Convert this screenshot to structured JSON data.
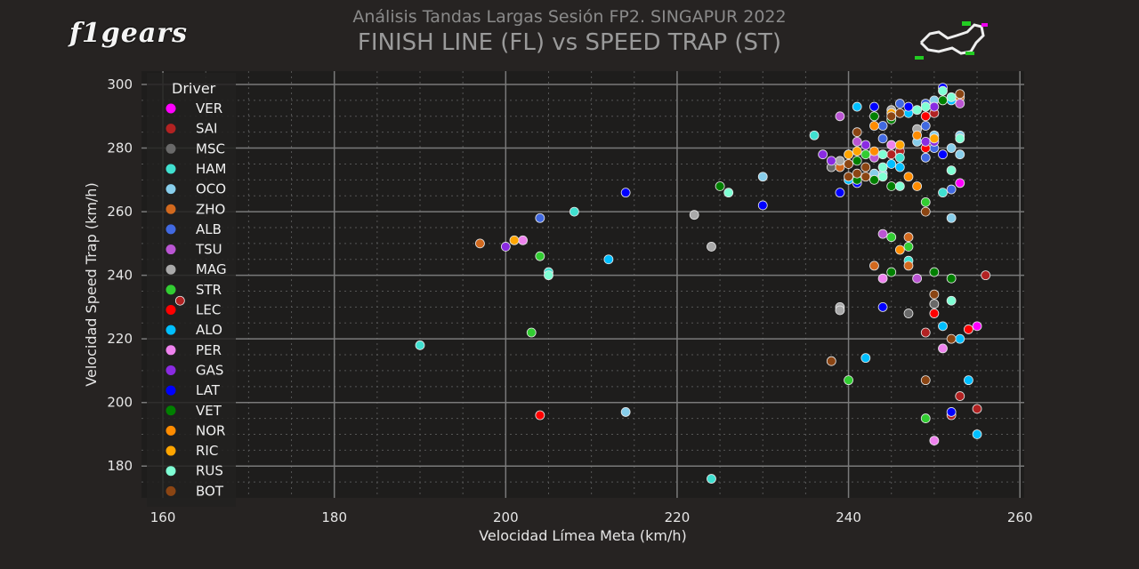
{
  "logo": {
    "text": "f1gears"
  },
  "header": {
    "subtitle": "Análisis Tandas Largas Sesión FP2. SINGAPUR 2022",
    "title": "FINISH LINE (FL) vs SPEED TRAP (ST)"
  },
  "chart_data": {
    "type": "scatter",
    "title": "FINISH LINE (FL) vs SPEED TRAP (ST)",
    "xlabel": "Velocidad Límea Meta (km/h)",
    "ylabel": "Velocidad Speed Trap (km/h)",
    "xlim": [
      157.5,
      260.5
    ],
    "ylim": [
      170,
      304.2
    ],
    "xticks": [
      160,
      180,
      200,
      220,
      240,
      260
    ],
    "yticks": [
      180,
      200,
      220,
      240,
      260,
      280,
      300
    ],
    "grid": true,
    "legend_title": "Driver",
    "legend_position": "left",
    "series": [
      {
        "name": "VER",
        "color": "#ff00ff",
        "points": [
          [
            255,
            224
          ],
          [
            253,
            269
          ]
        ]
      },
      {
        "name": "SAI",
        "color": "#b22222",
        "points": [
          [
            162,
            232
          ],
          [
            256,
            240
          ],
          [
            249,
            222
          ],
          [
            253,
            202
          ],
          [
            255,
            198
          ],
          [
            252,
            196
          ],
          [
            250,
            291
          ],
          [
            245,
            278
          ],
          [
            246,
            279
          ]
        ]
      },
      {
        "name": "MSC",
        "color": "#696969",
        "points": [
          [
            238,
            274
          ],
          [
            250,
            231
          ],
          [
            247,
            228
          ]
        ]
      },
      {
        "name": "HAM",
        "color": "#40e0d0",
        "points": [
          [
            190,
            218
          ],
          [
            205,
            241
          ],
          [
            208,
            260
          ],
          [
            224,
            176
          ],
          [
            236,
            284
          ],
          [
            247,
            244.6
          ],
          [
            246,
            277
          ],
          [
            251,
            266
          ]
        ]
      },
      {
        "name": "OCO",
        "color": "#87ceeb",
        "points": [
          [
            214,
            197
          ],
          [
            230,
            271
          ],
          [
            252,
            258
          ],
          [
            250,
            295
          ],
          [
            248,
            282
          ],
          [
            250,
            284
          ],
          [
            253,
            284
          ],
          [
            244,
            272
          ],
          [
            243,
            272
          ],
          [
            252,
            280
          ],
          [
            253,
            278
          ]
        ]
      },
      {
        "name": "ZHO",
        "color": "#d2691e",
        "points": [
          [
            197,
            250
          ],
          [
            247,
            252
          ],
          [
            247,
            243
          ],
          [
            243,
            243
          ],
          [
            253,
            296
          ],
          [
            239,
            274
          ]
        ]
      },
      {
        "name": "ALB",
        "color": "#4169e1",
        "points": [
          [
            204,
            258
          ],
          [
            246,
            294
          ],
          [
            249,
            294
          ],
          [
            244,
            287
          ],
          [
            249,
            287
          ],
          [
            250,
            280
          ],
          [
            249,
            277
          ],
          [
            244,
            283
          ],
          [
            252,
            267
          ]
        ]
      },
      {
        "name": "TSU",
        "color": "#ba55d3",
        "points": [
          [
            244,
            253
          ],
          [
            248,
            239
          ],
          [
            239,
            290
          ],
          [
            253,
            294
          ],
          [
            241,
            282
          ],
          [
            243,
            277
          ]
        ]
      },
      {
        "name": "MAG",
        "color": "#a9a9a9",
        "points": [
          [
            222,
            259
          ],
          [
            224,
            249
          ],
          [
            239,
            230
          ],
          [
            239,
            229
          ],
          [
            245,
            292
          ],
          [
            248,
            286
          ],
          [
            239,
            276
          ]
        ]
      },
      {
        "name": "STR",
        "color": "#32cd32",
        "points": [
          [
            204,
            246
          ],
          [
            203,
            222
          ],
          [
            247,
            249
          ],
          [
            245,
            252
          ],
          [
            240,
            207
          ],
          [
            249,
            195
          ],
          [
            242,
            278
          ],
          [
            249,
            263
          ]
        ]
      },
      {
        "name": "LEC",
        "color": "#ff0000",
        "points": [
          [
            204,
            196
          ],
          [
            250,
            228
          ],
          [
            254,
            223
          ],
          [
            249,
            290
          ],
          [
            249,
            280
          ]
        ]
      },
      {
        "name": "ALO",
        "color": "#00bfff",
        "points": [
          [
            212,
            245
          ],
          [
            242,
            214
          ],
          [
            251,
            224
          ],
          [
            253,
            220
          ],
          [
            254,
            207
          ],
          [
            255,
            190
          ],
          [
            252,
            295
          ],
          [
            247,
            291
          ],
          [
            241,
            293
          ],
          [
            245,
            275
          ],
          [
            246,
            274
          ],
          [
            240,
            270
          ]
        ]
      },
      {
        "name": "PER",
        "color": "#ee82ee",
        "points": [
          [
            202,
            251
          ],
          [
            244,
            239
          ],
          [
            251,
            217
          ],
          [
            250,
            188
          ],
          [
            245,
            281
          ]
        ]
      },
      {
        "name": "GAS",
        "color": "#8a2be2",
        "points": [
          [
            200,
            249
          ],
          [
            250,
            293
          ],
          [
            249,
            282
          ],
          [
            250,
            282
          ],
          [
            242,
            281
          ],
          [
            237,
            278
          ],
          [
            238,
            276
          ]
        ]
      },
      {
        "name": "LAT",
        "color": "#0000ff",
        "points": [
          [
            214,
            266
          ],
          [
            230,
            262
          ],
          [
            239,
            266
          ],
          [
            244,
            230
          ],
          [
            252,
            197
          ],
          [
            251,
            299
          ],
          [
            247,
            293
          ],
          [
            243,
            293
          ],
          [
            251,
            278
          ],
          [
            241,
            269
          ]
        ]
      },
      {
        "name": "VET",
        "color": "#008000",
        "points": [
          [
            225,
            268
          ],
          [
            245,
            241
          ],
          [
            250,
            241
          ],
          [
            252,
            239
          ],
          [
            251,
            295
          ],
          [
            245,
            289
          ],
          [
            243,
            290
          ],
          [
            241,
            276
          ],
          [
            241,
            270
          ],
          [
            243,
            270
          ],
          [
            245,
            268
          ]
        ]
      },
      {
        "name": "NOR",
        "color": "#ff8c00",
        "points": [
          [
            246,
            248
          ],
          [
            243,
            287
          ],
          [
            248,
            284
          ],
          [
            243,
            279
          ],
          [
            247,
            271
          ],
          [
            248,
            268
          ]
        ]
      },
      {
        "name": "RIC",
        "color": "#ffa500",
        "points": [
          [
            201,
            251
          ],
          [
            245,
            291
          ],
          [
            250,
            283
          ],
          [
            246,
            281
          ],
          [
            240,
            278
          ],
          [
            241,
            279
          ]
        ]
      },
      {
        "name": "RUS",
        "color": "#7fffd4",
        "points": [
          [
            205,
            240
          ],
          [
            226,
            266
          ],
          [
            251,
            298
          ],
          [
            252,
            296
          ],
          [
            248,
            292
          ],
          [
            249,
            293
          ],
          [
            253,
            283
          ],
          [
            244,
            278
          ],
          [
            244,
            274
          ],
          [
            244,
            271
          ],
          [
            252,
            273
          ],
          [
            246,
            268
          ],
          [
            252,
            232
          ]
        ]
      },
      {
        "name": "BOT",
        "color": "#8b4513",
        "points": [
          [
            238,
            213
          ],
          [
            249,
            207
          ],
          [
            252,
            220
          ],
          [
            250,
            234
          ],
          [
            249,
            260
          ],
          [
            253,
            297
          ],
          [
            245,
            290
          ],
          [
            246,
            291
          ],
          [
            241,
            285
          ],
          [
            240,
            275
          ],
          [
            242,
            274
          ],
          [
            240,
            271
          ],
          [
            241,
            272
          ],
          [
            242,
            271
          ]
        ]
      }
    ]
  }
}
